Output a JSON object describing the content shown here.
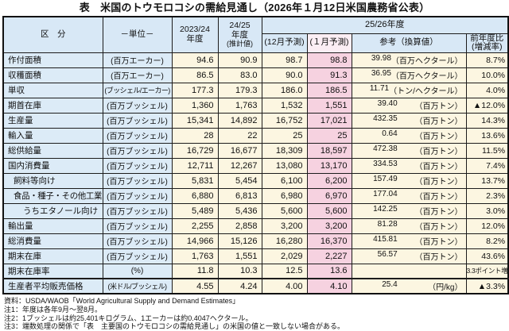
{
  "title": "表　米国のトウモロコシの需給見通し（2026年１月12日米国農務省公表）",
  "table": {
    "header": {
      "category": "区　分",
      "unit": "－単位－",
      "y2324": "2023/24\n年度",
      "y2425_main": "24/25\n年度",
      "y2425_sub": "(推計値)",
      "y2526": "25/26年度",
      "dec": "(12月予測)",
      "jan": "(１月予測)",
      "reference": "参考（換算値）",
      "yoy": "前年度比\n(増減率)"
    },
    "rows": [
      {
        "label": "作付面積",
        "indent": 0,
        "unit": "(百万エーカー)",
        "y2324": "94.6",
        "y2425": "90.9",
        "dec": "98.7",
        "jan": "98.8",
        "ref_value": "39.98",
        "ref_unit": "（百万ヘクタール）",
        "yoy": "8.7%"
      },
      {
        "label": "収穫面積",
        "indent": 0,
        "unit": "(百万エーカー)",
        "y2324": "86.5",
        "y2425": "83.0",
        "dec": "90.0",
        "jan": "91.3",
        "ref_value": "36.95",
        "ref_unit": "（百万ヘクタール）",
        "yoy": "10.0%"
      },
      {
        "label": "単収",
        "indent": 0,
        "unit": "(ブッシェル/エーカー)",
        "unit_small": true,
        "y2324": "177.3",
        "y2425": "179.3",
        "dec": "186.0",
        "jan": "186.5",
        "ref_value": "11.71",
        "ref_unit": "（トン/ヘクタール）",
        "yoy": "4.0%"
      },
      {
        "label": "期首在庫",
        "indent": 0,
        "unit": "(百万ブッシェル)",
        "y2324": "1,360",
        "y2425": "1,763",
        "dec": "1,532",
        "jan": "1,551",
        "ref_value": "39.40",
        "ref_unit": "（百万トン）",
        "yoy": "▲12.0%"
      },
      {
        "label": "生産量",
        "indent": 0,
        "unit": "(百万ブッシェル)",
        "y2324": "15,341",
        "y2425": "14,892",
        "dec": "16,752",
        "jan": "17,021",
        "ref_value": "432.35",
        "ref_unit": "（百万トン）",
        "yoy": "14.3%"
      },
      {
        "label": "輸入量",
        "indent": 0,
        "unit": "(百万ブッシェル)",
        "y2324": "28",
        "y2425": "22",
        "dec": "25",
        "jan": "25",
        "ref_value": "0.64",
        "ref_unit": "（百万トン）",
        "yoy": "13.6%"
      },
      {
        "label": "総供給量",
        "indent": 0,
        "unit": "(百万ブッシェル)",
        "y2324": "16,729",
        "y2425": "16,677",
        "dec": "18,309",
        "jan": "18,597",
        "ref_value": "472.38",
        "ref_unit": "（百万トン）",
        "yoy": "11.5%"
      },
      {
        "label": "国内消費量",
        "indent": 0,
        "unit": "(百万ブッシェル)",
        "y2324": "12,711",
        "y2425": "12,267",
        "dec": "13,080",
        "jan": "13,170",
        "ref_value": "334.53",
        "ref_unit": "（百万トン）",
        "yoy": "7.4%"
      },
      {
        "label": "飼料等向け",
        "indent": 1,
        "unit": "(百万ブッシェル)",
        "y2324": "5,831",
        "y2425": "5,454",
        "dec": "6,100",
        "jan": "6,200",
        "ref_value": "157.49",
        "ref_unit": "（百万トン）",
        "yoy": "13.7%"
      },
      {
        "label": "食品・種子・その他工業向け",
        "indent": 1,
        "small": true,
        "unit": "(百万ブッシェル)",
        "y2324": "6,880",
        "y2425": "6,813",
        "dec": "6,980",
        "jan": "6,970",
        "ref_value": "177.04",
        "ref_unit": "（百万トン）",
        "yoy": "2.3%"
      },
      {
        "label": "うちエタノール向け",
        "indent": 2,
        "unit": "(百万ブッシェル)",
        "y2324": "5,489",
        "y2425": "5,436",
        "dec": "5,600",
        "jan": "5,600",
        "ref_value": "142.25",
        "ref_unit": "（百万トン）",
        "yoy": "3.0%"
      },
      {
        "label": "輸出量",
        "indent": 0,
        "unit": "(百万ブッシェル)",
        "y2324": "2,255",
        "y2425": "2,858",
        "dec": "3,200",
        "jan": "3,200",
        "ref_value": "81.28",
        "ref_unit": "（百万トン）",
        "yoy": "12.0%"
      },
      {
        "label": "総消費量",
        "indent": 0,
        "unit": "(百万ブッシェル)",
        "y2324": "14,966",
        "y2425": "15,126",
        "dec": "16,280",
        "jan": "16,370",
        "ref_value": "415.81",
        "ref_unit": "（百万トン）",
        "yoy": "8.2%"
      },
      {
        "label": "期末在庫",
        "indent": 0,
        "unit": "(百万ブッシェル)",
        "y2324": "1,763",
        "y2425": "1,551",
        "dec": "2,029",
        "jan": "2,227",
        "ref_value": "56.57",
        "ref_unit": "（百万トン）",
        "yoy": "43.6%"
      },
      {
        "label": "期末在庫率",
        "indent": 0,
        "unit": "(%)",
        "y2324": "11.8",
        "y2425": "10.3",
        "dec": "12.5",
        "jan": "13.6",
        "ref_value": "",
        "ref_unit": "",
        "yoy": "3.3ポイント増",
        "yoy_small": true
      },
      {
        "label": "生産者平均販売価格",
        "indent": 0,
        "unit": "(米ドル/ブッシェル)",
        "unit_small": true,
        "y2324": "4.55",
        "y2425": "4.24",
        "dec": "4.00",
        "jan": "4.10",
        "ref_value": "25.4",
        "ref_unit": "（円/kg）",
        "yoy": "▲3.3%",
        "heavy_top": true
      }
    ]
  },
  "notes": [
    "資料：USDA/WAOB「World Agricultural Supply and Demand Estimates」",
    "注1：年度は各年9月～翌8月。",
    "注2：1ブッシェルは約25.401キログラム、1エーカーは約0.4047ヘクタール。",
    "注3：端数処理の関係で「表　主要国のトウモロコシの需給見通し」の米国の値と一致しない場合がある。"
  ],
  "colors": {
    "header_blue": "#d8e8f6",
    "label_blue": "#dcebf7",
    "data_cream": "#fcf6e1",
    "highlight_pink": "#f6d2e0",
    "highlight_pink_header": "#fbeef4",
    "border": "#1c1c1c"
  }
}
